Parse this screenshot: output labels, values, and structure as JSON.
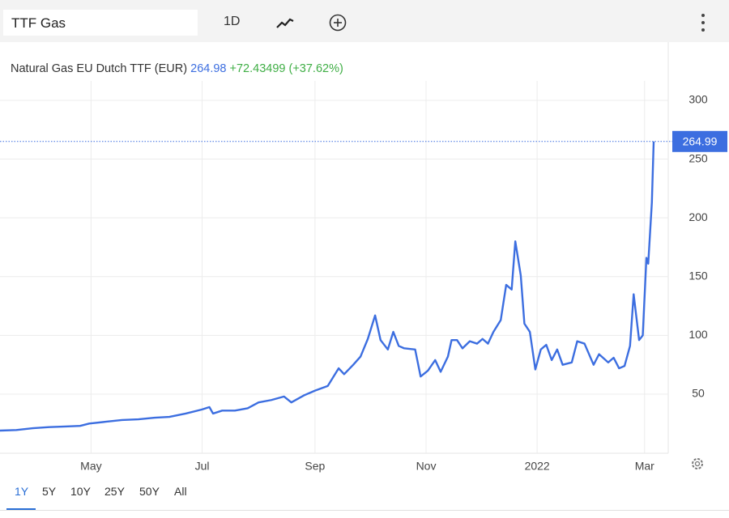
{
  "toolbar": {
    "search": "TTF Gas",
    "interval": "1D"
  },
  "header": {
    "title": "Natural Gas EU Dutch TTF (EUR)",
    "price": "264.98",
    "change": "+72.43499 (+37.62%)"
  },
  "ranges": [
    "1Y",
    "5Y",
    "10Y",
    "25Y",
    "50Y",
    "All"
  ],
  "chart_data": {
    "type": "line",
    "color": "#3c6ee0",
    "grid": true,
    "x": [
      0,
      9,
      18,
      27,
      36,
      44,
      49,
      58,
      67,
      76,
      85,
      93,
      102,
      111,
      115,
      117,
      122,
      129,
      136,
      142,
      149,
      156,
      160,
      167,
      173,
      180,
      186,
      189,
      194,
      198,
      202,
      206,
      209,
      213,
      216,
      219,
      222,
      228,
      231,
      235,
      239,
      242,
      246,
      248,
      251,
      254,
      258,
      262,
      265,
      268,
      271,
      275,
      278,
      281,
      283,
      286,
      288,
      291,
      294,
      297,
      300,
      303,
      306,
      309,
      314,
      317,
      321,
      326,
      329,
      334,
      337,
      340,
      343,
      346,
      348,
      351,
      353,
      355,
      356,
      358,
      359
    ],
    "values": [
      19,
      19.5,
      21,
      22,
      22.5,
      23,
      25,
      26.5,
      28,
      28.6,
      30,
      30.7,
      33.5,
      37,
      39,
      33.5,
      36,
      36,
      38,
      43,
      45,
      48,
      43,
      49,
      53,
      57,
      72,
      67,
      75,
      82,
      97,
      117,
      96,
      88,
      103,
      91,
      89,
      88,
      65,
      70,
      79,
      69,
      82,
      96,
      96,
      89,
      95,
      93,
      97,
      93,
      103,
      113,
      143,
      139,
      180,
      151,
      110,
      103,
      71,
      88,
      92,
      79,
      88,
      75,
      77,
      95,
      93,
      75,
      84,
      77,
      81,
      72,
      74,
      91,
      135,
      96,
      100,
      166,
      161,
      213,
      264.99
    ],
    "xlim": [
      0,
      367
    ],
    "xticks": [
      {
        "value": 50,
        "label": "May"
      },
      {
        "value": 111,
        "label": "Jul"
      },
      {
        "value": 173,
        "label": "Sep"
      },
      {
        "value": 234,
        "label": "Nov"
      },
      {
        "value": 295,
        "label": "2022"
      },
      {
        "value": 354,
        "label": "Mar"
      }
    ],
    "ylim": [
      0,
      345
    ],
    "yticks": [
      50,
      100,
      150,
      200,
      250,
      300
    ]
  }
}
